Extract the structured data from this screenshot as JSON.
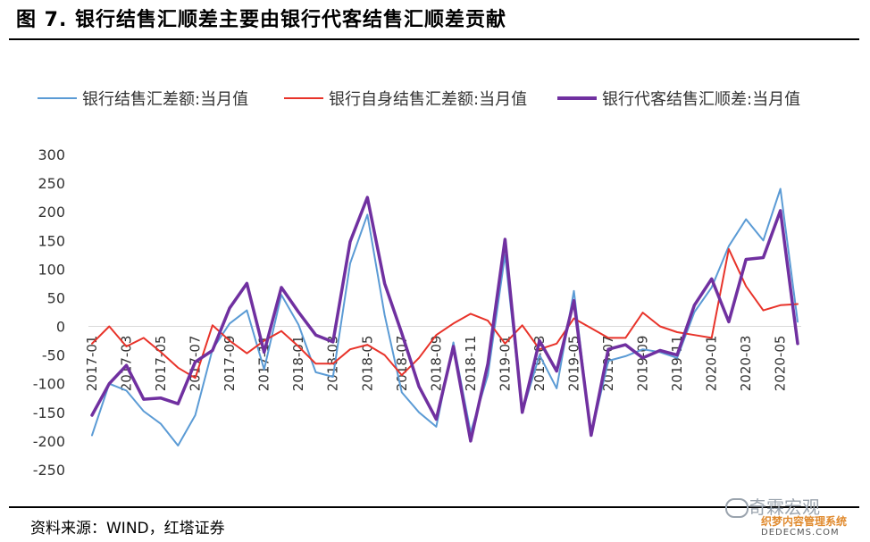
{
  "header": {
    "title": "图 7. 银行结售汇顺差主要由银行代客结售汇顺差贡献"
  },
  "footer": {
    "source": "资料来源：WIND，红塔证券"
  },
  "watermark": {
    "text": "奇霖宏观",
    "site_cn": "织梦内容管理系统",
    "site_en": "DEDECMS.COM"
  },
  "colors": {
    "series1": "#5b9bd5",
    "series2": "#e8332a",
    "series3": "#7030a0",
    "text": "#333333",
    "axis": "#d9d9d9"
  },
  "chart_data": {
    "type": "line",
    "title": "",
    "xlabel": "",
    "ylabel": "",
    "ylim": [
      -250,
      300
    ],
    "yticks": [
      300,
      250,
      200,
      150,
      100,
      50,
      0,
      -50,
      -100,
      -150,
      -200,
      -250
    ],
    "grid": false,
    "legend_position": "top",
    "x": [
      "2017-01",
      "2017-02",
      "2017-03",
      "2017-04",
      "2017-05",
      "2017-06",
      "2017-07",
      "2017-08",
      "2017-09",
      "2017-10",
      "2017-11",
      "2017-12",
      "2018-01",
      "2018-02",
      "2018-03",
      "2018-04",
      "2018-05",
      "2018-06",
      "2018-07",
      "2018-08",
      "2018-09",
      "2018-10",
      "2018-11",
      "2018-12",
      "2019-01",
      "2019-02",
      "2019-03",
      "2019-04",
      "2019-05",
      "2019-06",
      "2019-07",
      "2019-08",
      "2019-09",
      "2019-10",
      "2019-11",
      "2019-12",
      "2020-01",
      "2020-02",
      "2020-03",
      "2020-04",
      "2020-05",
      "2020-06"
    ],
    "tick_labels": [
      "2017-01",
      "2017-03",
      "2017-05",
      "2017-07",
      "2017-09",
      "2017-11",
      "2018-01",
      "2018-03",
      "2018-05",
      "2018-07",
      "2018-09",
      "2018-11",
      "2019-01",
      "2019-03",
      "2019-05",
      "2019-07",
      "2019-09",
      "2019-11",
      "2020-01",
      "2020-03",
      "2020-05"
    ],
    "series": [
      {
        "name": "银行结售汇差额:当月值",
        "values": [
          -190,
          -100,
          -112,
          -148,
          -170,
          -208,
          -155,
          -40,
          5,
          28,
          -75,
          55,
          3,
          -80,
          -88,
          110,
          195,
          20,
          -115,
          -150,
          -175,
          -28,
          -185,
          -85,
          125,
          -150,
          -50,
          -108,
          62,
          -190,
          -60,
          -52,
          -40,
          -45,
          -55,
          25,
          68,
          140,
          187,
          150,
          240,
          8
        ]
      },
      {
        "name": "银行自身结售汇差额:当月值",
        "values": [
          -30,
          0,
          -35,
          -20,
          -45,
          -72,
          -90,
          2,
          -25,
          -47,
          -25,
          -8,
          -35,
          -65,
          -65,
          -40,
          -32,
          -50,
          -85,
          -55,
          -15,
          5,
          22,
          10,
          -30,
          2,
          -40,
          -30,
          14,
          -3,
          -20,
          -20,
          24,
          0,
          -10,
          -15,
          -20,
          135,
          70,
          28,
          37,
          39
        ]
      },
      {
        "name": "银行代客结售汇顺差:当月值",
        "values": [
          -155,
          -100,
          -68,
          -127,
          -125,
          -135,
          -62,
          -42,
          32,
          75,
          -45,
          68,
          25,
          -15,
          -27,
          148,
          225,
          75,
          -12,
          -105,
          -162,
          -35,
          -200,
          -65,
          152,
          -150,
          -25,
          -78,
          45,
          -190,
          -40,
          -32,
          -55,
          -42,
          -50,
          37,
          83,
          8,
          117,
          120,
          202,
          -30
        ]
      }
    ]
  }
}
